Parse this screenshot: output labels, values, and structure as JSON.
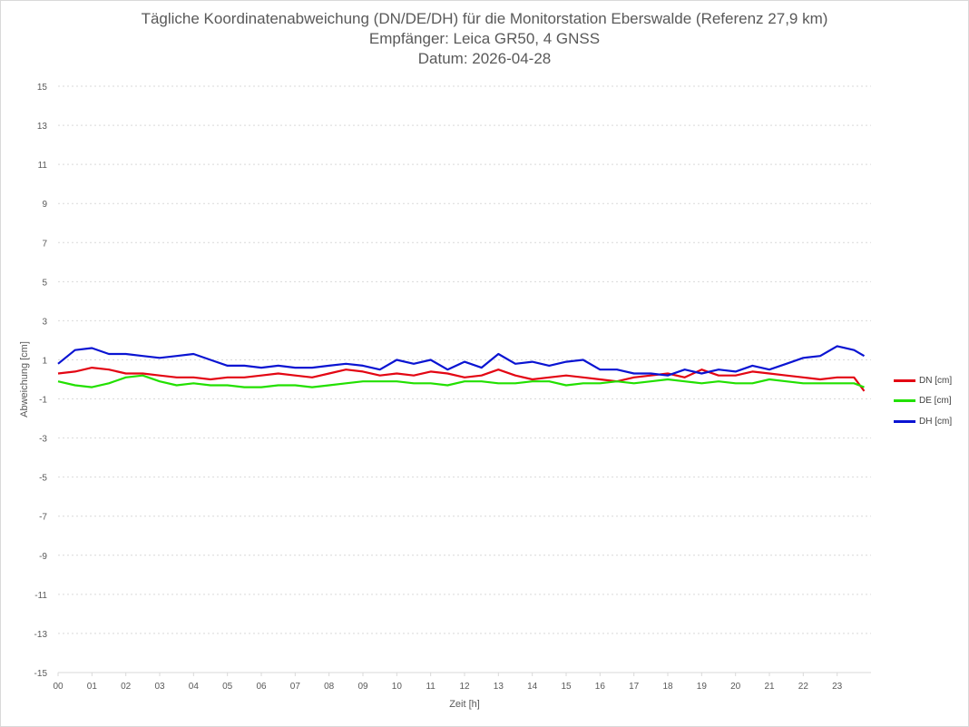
{
  "chart_data": {
    "type": "line",
    "title": "Tägliche Koordinatenabweichung (DN/DE/DH) für die Monitorstation Eberswalde (Referenz 27,9 km)",
    "subtitle1": "Empfänger: Leica GR50, 4 GNSS",
    "subtitle2": "Datum: 2026-04-28",
    "xlabel": "Zeit [h]",
    "ylabel": "Abweichung [cm]",
    "xlim": [
      0,
      24
    ],
    "ylim": [
      -15,
      15
    ],
    "x_ticks": [
      "00",
      "01",
      "02",
      "03",
      "04",
      "05",
      "06",
      "07",
      "08",
      "09",
      "10",
      "11",
      "12",
      "13",
      "14",
      "15",
      "16",
      "17",
      "18",
      "19",
      "20",
      "21",
      "22",
      "23"
    ],
    "y_ticks": [
      "15",
      "13",
      "11",
      "9",
      "7",
      "5",
      "3",
      "1",
      "-1",
      "-3",
      "-5",
      "-7",
      "-9",
      "-11",
      "-13",
      "-15"
    ],
    "y_tick_values": [
      15,
      13,
      11,
      9,
      7,
      5,
      3,
      1,
      -1,
      -3,
      -5,
      -7,
      -9,
      -11,
      -13,
      -15
    ],
    "grid": true,
    "legend_position": "right",
    "x_hours": [
      0.0,
      0.5,
      1.0,
      1.5,
      2.0,
      2.5,
      3.0,
      3.5,
      4.0,
      4.5,
      5.0,
      5.5,
      6.0,
      6.5,
      7.0,
      7.5,
      8.0,
      8.5,
      9.0,
      9.5,
      10.0,
      10.5,
      11.0,
      11.5,
      12.0,
      12.5,
      13.0,
      13.5,
      14.0,
      14.5,
      15.0,
      15.5,
      16.0,
      16.5,
      17.0,
      17.5,
      18.0,
      18.5,
      19.0,
      19.5,
      20.0,
      20.5,
      21.0,
      21.5,
      22.0,
      22.5,
      23.0,
      23.5,
      23.8
    ],
    "series": [
      {
        "name": "DN [cm]",
        "color": "#e30613",
        "values": [
          0.3,
          0.4,
          0.6,
          0.5,
          0.3,
          0.3,
          0.2,
          0.1,
          0.1,
          0.0,
          0.1,
          0.1,
          0.2,
          0.3,
          0.2,
          0.1,
          0.3,
          0.5,
          0.4,
          0.2,
          0.3,
          0.2,
          0.4,
          0.3,
          0.1,
          0.2,
          0.5,
          0.2,
          0.0,
          0.1,
          0.2,
          0.1,
          0.0,
          -0.1,
          0.1,
          0.2,
          0.3,
          0.1,
          0.5,
          0.2,
          0.2,
          0.4,
          0.3,
          0.2,
          0.1,
          0.0,
          0.1,
          0.1,
          -0.6
        ]
      },
      {
        "name": "DE [cm]",
        "color": "#22e000",
        "values": [
          -0.1,
          -0.3,
          -0.4,
          -0.2,
          0.1,
          0.2,
          -0.1,
          -0.3,
          -0.2,
          -0.3,
          -0.3,
          -0.4,
          -0.4,
          -0.3,
          -0.3,
          -0.4,
          -0.3,
          -0.2,
          -0.1,
          -0.1,
          -0.1,
          -0.2,
          -0.2,
          -0.3,
          -0.1,
          -0.1,
          -0.2,
          -0.2,
          -0.1,
          -0.1,
          -0.3,
          -0.2,
          -0.2,
          -0.1,
          -0.2,
          -0.1,
          0.0,
          -0.1,
          -0.2,
          -0.1,
          -0.2,
          -0.2,
          0.0,
          -0.1,
          -0.2,
          -0.2,
          -0.2,
          -0.2,
          -0.4
        ]
      },
      {
        "name": "DH [cm]",
        "color": "#0a14d2",
        "values": [
          0.8,
          1.5,
          1.6,
          1.3,
          1.3,
          1.2,
          1.1,
          1.2,
          1.3,
          1.0,
          0.7,
          0.7,
          0.6,
          0.7,
          0.6,
          0.6,
          0.7,
          0.8,
          0.7,
          0.5,
          1.0,
          0.8,
          1.0,
          0.5,
          0.9,
          0.6,
          1.3,
          0.8,
          0.9,
          0.7,
          0.9,
          1.0,
          0.5,
          0.5,
          0.3,
          0.3,
          0.2,
          0.5,
          0.3,
          0.5,
          0.4,
          0.7,
          0.5,
          0.8,
          1.1,
          1.2,
          1.7,
          1.5,
          1.2
        ]
      }
    ]
  }
}
